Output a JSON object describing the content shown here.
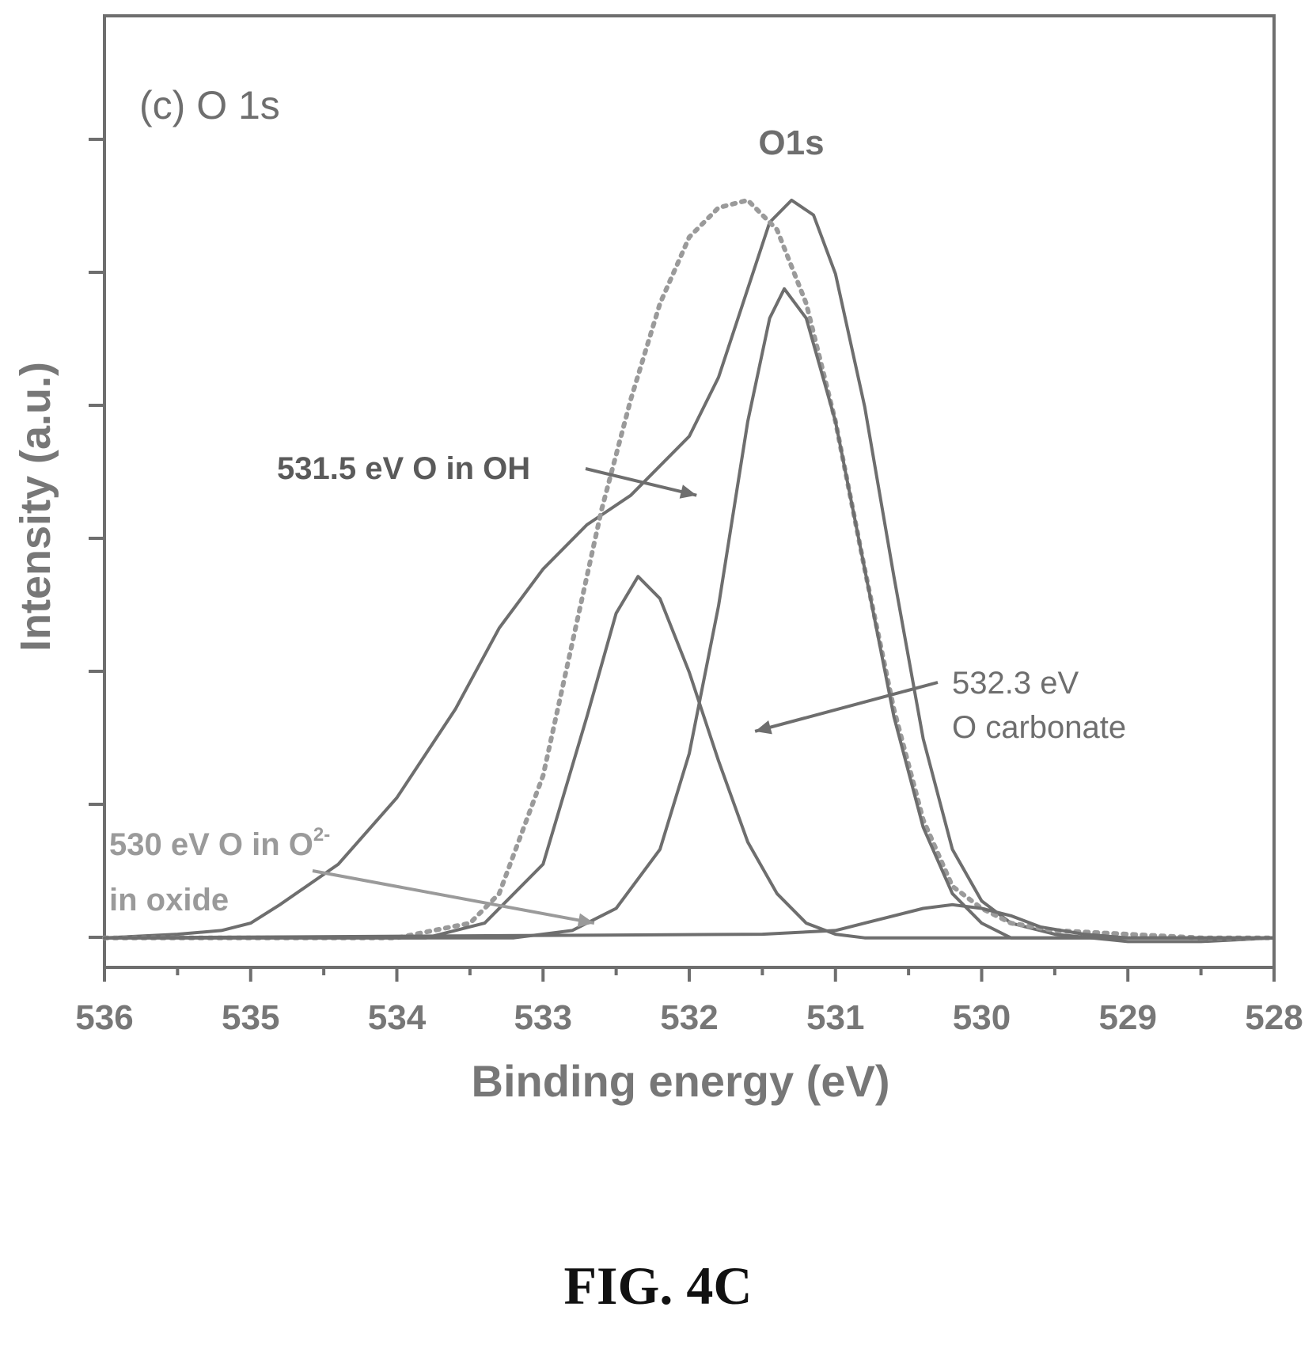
{
  "chart_data": {
    "type": "line",
    "panel_label": "(c) O 1s",
    "xlabel": "Binding energy (eV)",
    "ylabel": "Intensity (a.u.)",
    "xlim": [
      536,
      528
    ],
    "x_reversed": true,
    "ylim": [
      -0.04,
      1.25
    ],
    "x_ticks": [
      "536",
      "535",
      "534",
      "533",
      "532",
      "531",
      "530",
      "529",
      "528"
    ],
    "y_tick_labels_shown": false,
    "grid": false,
    "peak_label": "O1s",
    "series": [
      {
        "style": "solid",
        "points": [
          [
            536,
            0.0
          ],
          [
            535.5,
            0.005
          ],
          [
            535.2,
            0.01
          ],
          [
            535.0,
            0.02
          ],
          [
            534.8,
            0.045
          ],
          [
            534.4,
            0.1
          ],
          [
            534.0,
            0.19
          ],
          [
            533.6,
            0.31
          ],
          [
            533.3,
            0.42
          ],
          [
            533.0,
            0.5
          ],
          [
            532.7,
            0.56
          ],
          [
            532.4,
            0.6
          ],
          [
            532.0,
            0.68
          ],
          [
            531.8,
            0.76
          ],
          [
            531.6,
            0.88
          ],
          [
            531.45,
            0.97
          ],
          [
            531.3,
            1.0
          ],
          [
            531.15,
            0.98
          ],
          [
            531.0,
            0.9
          ],
          [
            530.8,
            0.72
          ],
          [
            530.6,
            0.49
          ],
          [
            530.4,
            0.27
          ],
          [
            530.2,
            0.12
          ],
          [
            530.0,
            0.05
          ],
          [
            529.8,
            0.02
          ],
          [
            529.5,
            0.005
          ],
          [
            529.0,
            -0.005
          ],
          [
            528.5,
            -0.005
          ],
          [
            528.0,
            0.0
          ]
        ]
      },
      {
        "style": "dotted",
        "points": [
          [
            536,
            0.0
          ],
          [
            534.0,
            0.0
          ],
          [
            533.5,
            0.02
          ],
          [
            533.3,
            0.06
          ],
          [
            533.0,
            0.22
          ],
          [
            532.8,
            0.4
          ],
          [
            532.6,
            0.58
          ],
          [
            532.4,
            0.73
          ],
          [
            532.2,
            0.86
          ],
          [
            532.0,
            0.95
          ],
          [
            531.8,
            0.99
          ],
          [
            531.6,
            1.0
          ],
          [
            531.4,
            0.96
          ],
          [
            531.2,
            0.86
          ],
          [
            531.0,
            0.7
          ],
          [
            530.8,
            0.5
          ],
          [
            530.6,
            0.31
          ],
          [
            530.4,
            0.16
          ],
          [
            530.2,
            0.07
          ],
          [
            530.0,
            0.04
          ],
          [
            529.8,
            0.02
          ],
          [
            529.5,
            0.01
          ],
          [
            529.0,
            0.005
          ],
          [
            528.5,
            0.0
          ],
          [
            528.0,
            0.0
          ]
        ]
      },
      {
        "style": "solid",
        "points": [
          [
            536,
            0.0
          ],
          [
            533.2,
            0.0
          ],
          [
            532.8,
            0.01
          ],
          [
            532.5,
            0.04
          ],
          [
            532.2,
            0.12
          ],
          [
            532.0,
            0.25
          ],
          [
            531.8,
            0.45
          ],
          [
            531.6,
            0.7
          ],
          [
            531.45,
            0.84
          ],
          [
            531.35,
            0.88
          ],
          [
            531.2,
            0.84
          ],
          [
            531.0,
            0.7
          ],
          [
            530.8,
            0.5
          ],
          [
            530.6,
            0.3
          ],
          [
            530.4,
            0.15
          ],
          [
            530.2,
            0.06
          ],
          [
            530.0,
            0.02
          ],
          [
            529.8,
            0.0
          ],
          [
            528.0,
            0.0
          ]
        ]
      },
      {
        "style": "solid",
        "points": [
          [
            536,
            0.0
          ],
          [
            533.8,
            0.0
          ],
          [
            533.4,
            0.02
          ],
          [
            533.0,
            0.1
          ],
          [
            532.7,
            0.3
          ],
          [
            532.5,
            0.44
          ],
          [
            532.35,
            0.49
          ],
          [
            532.2,
            0.46
          ],
          [
            532.0,
            0.36
          ],
          [
            531.8,
            0.24
          ],
          [
            531.6,
            0.13
          ],
          [
            531.4,
            0.06
          ],
          [
            531.2,
            0.02
          ],
          [
            531.0,
            0.005
          ],
          [
            530.8,
            0.0
          ],
          [
            528.0,
            0.0
          ]
        ]
      },
      {
        "style": "solid",
        "points": [
          [
            536,
            0.0
          ],
          [
            531.5,
            0.005
          ],
          [
            531.0,
            0.01
          ],
          [
            530.8,
            0.02
          ],
          [
            530.6,
            0.03
          ],
          [
            530.4,
            0.04
          ],
          [
            530.2,
            0.045
          ],
          [
            530.0,
            0.04
          ],
          [
            529.8,
            0.03
          ],
          [
            529.6,
            0.015
          ],
          [
            529.3,
            0.005
          ],
          [
            529.0,
            0.0
          ],
          [
            528.0,
            0.0
          ]
        ]
      }
    ],
    "annotations": [
      {
        "text": "531.5 eV O in OH",
        "arrow_to": [
          531.95,
          0.6
        ]
      },
      {
        "lines": [
          "532.3 eV",
          "O carbonate"
        ],
        "arrow_to": [
          531.55,
          0.28
        ]
      },
      {
        "lines": [
          "530 eV O in O",
          "in oxide"
        ],
        "superscript": "2-",
        "arrow_to": [
          532.65,
          0.02
        ]
      }
    ]
  },
  "caption": "FIG. 4C"
}
